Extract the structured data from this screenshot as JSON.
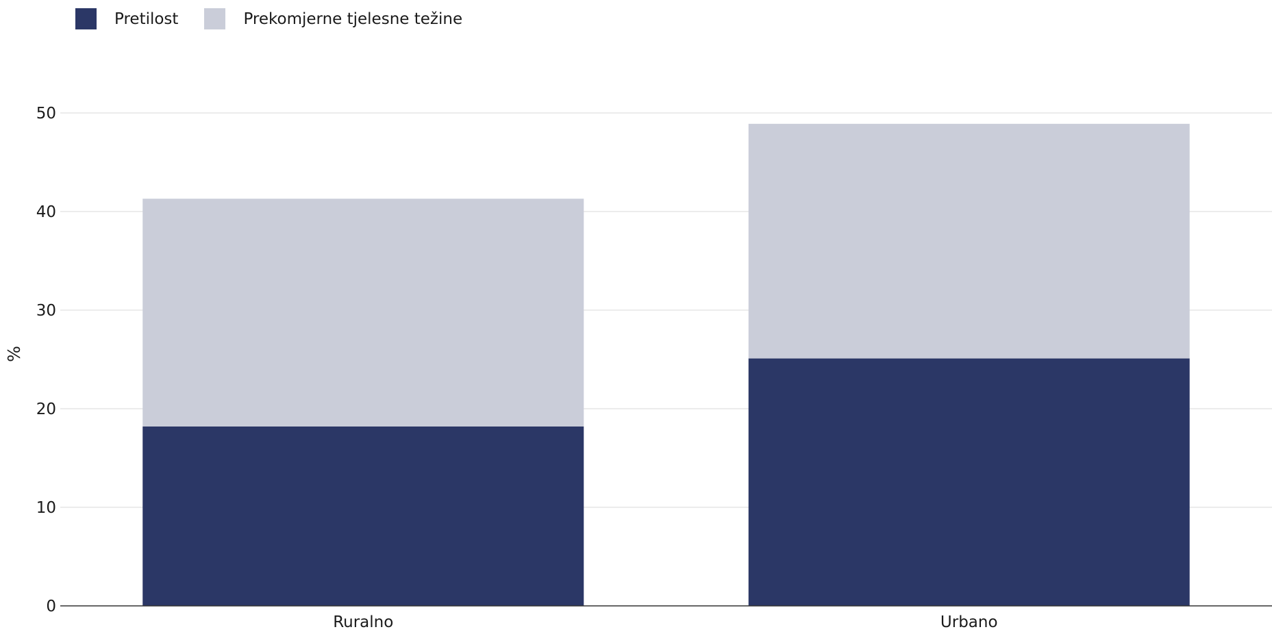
{
  "chart_data": {
    "type": "bar",
    "stacked": true,
    "categories": [
      "Ruralno",
      "Urbano"
    ],
    "series": [
      {
        "name": "Pretilost",
        "values": [
          18.2,
          25.1
        ],
        "color": "#2b3766"
      },
      {
        "name": "Prekomjerne tjelesne težine",
        "values": [
          23.1,
          23.8
        ],
        "color": "#cacdd9"
      }
    ],
    "title": "",
    "xlabel": "",
    "ylabel": "%",
    "ylim": [
      0,
      50
    ],
    "yticks": [
      "0",
      "10",
      "20",
      "30",
      "40",
      "50"
    ],
    "grid": true,
    "legend_position": "top-left"
  }
}
